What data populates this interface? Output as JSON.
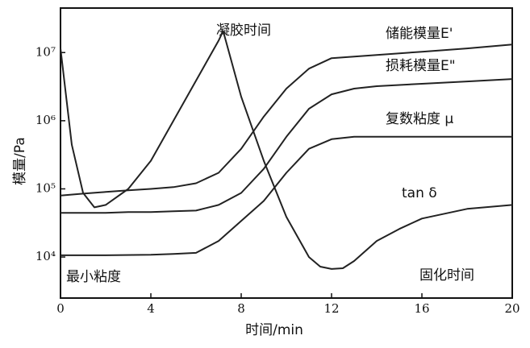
{
  "chart_data": {
    "type": "line",
    "x_label": "时间/min",
    "y_label": "模量/Pa",
    "xlim": [
      0,
      20
    ],
    "xticks": [
      0,
      4,
      8,
      12,
      16,
      20
    ],
    "ylim": [
      2500,
      45000000
    ],
    "log_y": true,
    "yticks": [
      {
        "value": 10000,
        "label": "10⁴"
      },
      {
        "value": 100000,
        "label": "10⁵"
      },
      {
        "value": 1000000,
        "label": "10⁶"
      },
      {
        "value": 10000000,
        "label": "10⁷"
      }
    ],
    "grid": false,
    "annotations": [
      "凝胶时间",
      "最小粘度",
      "固化时间"
    ],
    "series": [
      {
        "name": "储能模量E'",
        "color": "#222222",
        "x": [
          0,
          1,
          2,
          3,
          4,
          5,
          6,
          7,
          8,
          9,
          10,
          11,
          12,
          13,
          14,
          16,
          18,
          20
        ],
        "values": [
          80000,
          85000,
          90000,
          95000,
          100000,
          106000,
          121000,
          172000,
          387000,
          1150000,
          2960000,
          5820000,
          8280000,
          8740000,
          9220000,
          10300000,
          11500000,
          13100000
        ]
      },
      {
        "name": "损耗模量E\"",
        "color": "#222222",
        "x": [
          0,
          1,
          2,
          3,
          4,
          5,
          6,
          7,
          8,
          9,
          10,
          11,
          12,
          13,
          14,
          16,
          18,
          20
        ],
        "values": [
          44400,
          44400,
          44400,
          45600,
          45600,
          46900,
          48100,
          58200,
          87300,
          197000,
          582000,
          1500000,
          2440000,
          2960000,
          3210000,
          3480000,
          3770000,
          4090000
        ]
      },
      {
        "name": "复数粘度 μ",
        "color": "#222222",
        "x": [
          0,
          2,
          4,
          5,
          6,
          7,
          8,
          9,
          10,
          11,
          12,
          13,
          14,
          16,
          18,
          20
        ],
        "values": [
          10600,
          10600,
          10800,
          11100,
          11500,
          17200,
          33800,
          66600,
          172000,
          387000,
          536000,
          582000,
          582000,
          582000,
          582000,
          582000
        ]
      },
      {
        "name": "tan δ",
        "color": "#222222",
        "x": [
          0,
          0.5,
          1,
          1.5,
          2,
          3,
          4,
          5,
          6,
          7,
          7.2,
          8,
          9,
          10,
          11,
          11.5,
          12,
          12.5,
          13,
          14,
          15,
          16,
          18,
          20
        ],
        "values": [
          11500000,
          444000,
          87300,
          53600,
          58200,
          100000,
          258000,
          1000000,
          3870000,
          15000000,
          20800000,
          2250000,
          258000,
          38700,
          10000,
          7230,
          6670,
          6840,
          8740,
          17200,
          25800,
          36700,
          50800,
          58200
        ]
      }
    ]
  }
}
